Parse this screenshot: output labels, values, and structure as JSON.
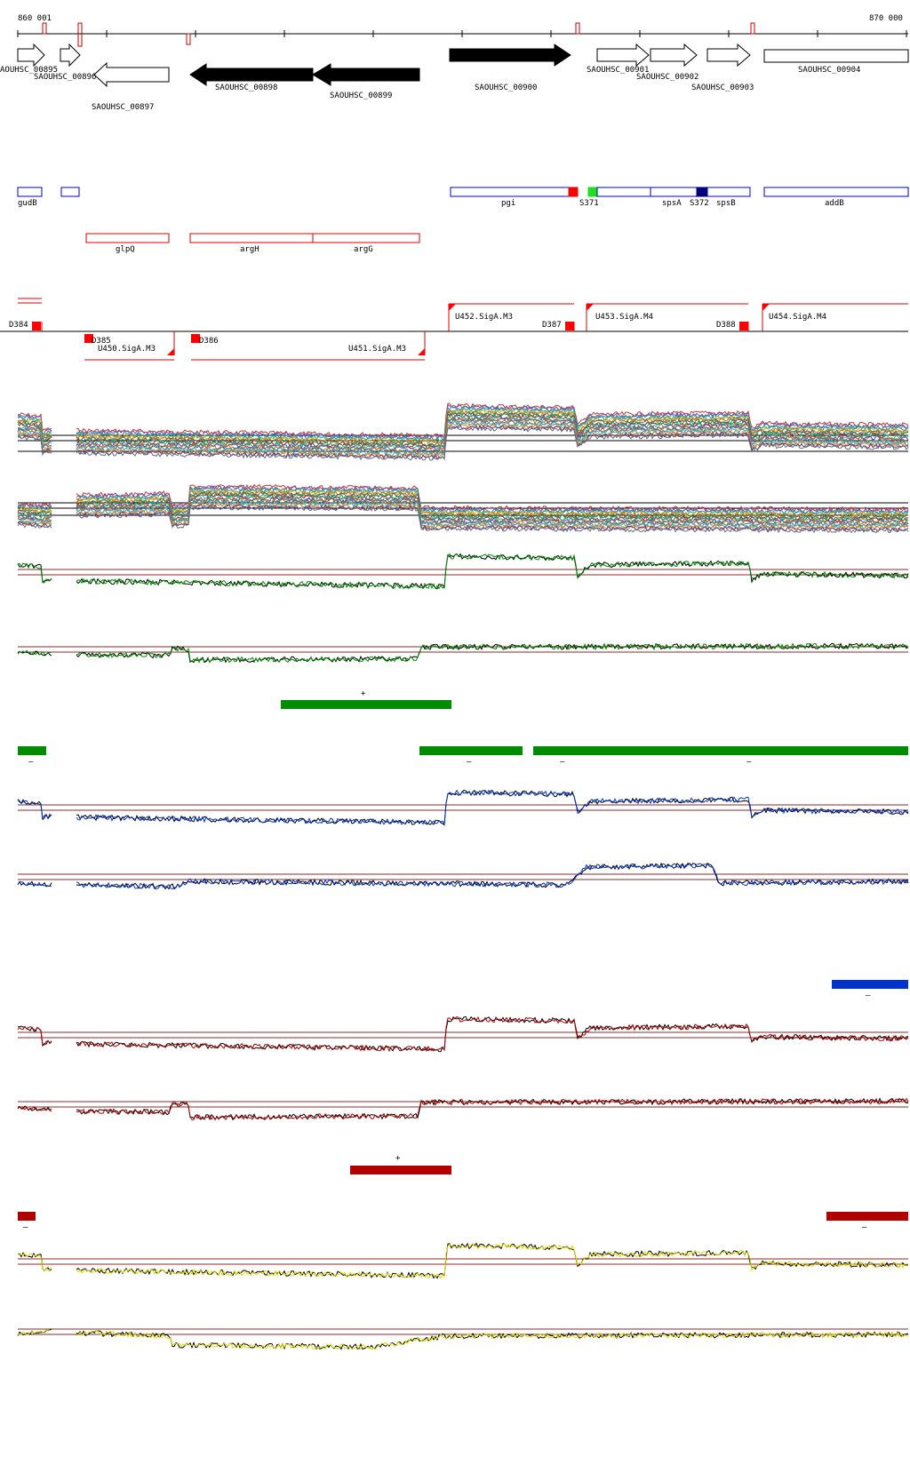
{
  "coords": {
    "start": "860 001",
    "end": "870 000"
  },
  "genes": [
    {
      "id": "g895",
      "label": "AOUHSC_00895"
    },
    {
      "id": "g896",
      "label": "SAOUHSC_00896"
    },
    {
      "id": "g897",
      "label": "SAOUHSC_00897"
    },
    {
      "id": "g898",
      "label": "SAOUHSC_00898"
    },
    {
      "id": "g899",
      "label": "SAOUHSC_00899"
    },
    {
      "id": "g900",
      "label": "SAOUHSC_00900"
    },
    {
      "id": "g901",
      "label": "SAOUHSC_00901"
    },
    {
      "id": "g902",
      "label": "SAOUHSC_00902"
    },
    {
      "id": "g903",
      "label": "SAOUHSC_00903"
    },
    {
      "id": "g904",
      "label": "SAOUHSC_00904"
    }
  ],
  "blue_features": [
    {
      "id": "gudb",
      "label": "gudB"
    },
    {
      "id": "blank",
      "label": ""
    },
    {
      "id": "pgi",
      "label": "pgi"
    },
    {
      "id": "s371",
      "label": "S371"
    },
    {
      "id": "spsa",
      "label": "spsA"
    },
    {
      "id": "s372",
      "label": "S372"
    },
    {
      "id": "spsb",
      "label": "spsB"
    },
    {
      "id": "addb",
      "label": "addB"
    }
  ],
  "red_features": [
    {
      "id": "glpq",
      "label": "glpQ"
    },
    {
      "id": "argh",
      "label": "argH"
    },
    {
      "id": "argg",
      "label": "argG"
    }
  ],
  "promoters": [
    {
      "id": "d384",
      "label": "D384"
    },
    {
      "id": "d385",
      "label": "D385"
    },
    {
      "id": "u450",
      "label": "U450.SigA.M3"
    },
    {
      "id": "d386",
      "label": "D386"
    },
    {
      "id": "u451",
      "label": "U451.SigA.M3"
    },
    {
      "id": "u452",
      "label": "U452.SigA.M3"
    },
    {
      "id": "d387",
      "label": "D387"
    },
    {
      "id": "u453",
      "label": "U453.SigA.M4"
    },
    {
      "id": "d388",
      "label": "D388"
    },
    {
      "id": "u454",
      "label": "U454.SigA.M4"
    }
  ],
  "segments": {
    "plus": "+",
    "minus": "–"
  },
  "colors": {
    "gene_black": "#000000",
    "feature_blue": "#0000cc",
    "feature_red": "#e00000",
    "green": "#008c00",
    "blue": "#0033cc",
    "dark_red": "#b00000",
    "yellow": "#dddd00",
    "guide": "#8b2b2b"
  }
}
